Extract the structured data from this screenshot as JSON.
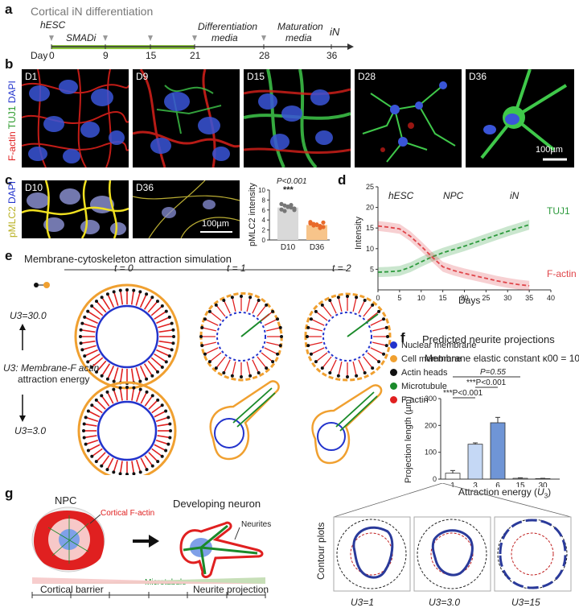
{
  "panel_letters": {
    "a": "a",
    "b": "b",
    "c": "c",
    "d": "d",
    "e": "e",
    "f": "f",
    "g": "g"
  },
  "panel_a": {
    "title": "Cortical iN differentiation",
    "start_label": "hESC",
    "smadi_label": "SMADi",
    "diff_label_1": "Differentiation",
    "diff_label_2": "media",
    "mat_label_1": "Maturation",
    "mat_label_2": "media",
    "end_label": "iN",
    "day_label": "Day",
    "days": [
      "0",
      "9",
      "15",
      "21",
      "28",
      "36"
    ],
    "accent_color": "#8dc63f"
  },
  "panel_b": {
    "ylabel_parts": [
      "F-actin",
      "TUJ1",
      "DAPI"
    ],
    "images": [
      "D1",
      "D9",
      "D15",
      "D28",
      "D36"
    ],
    "scalebar": "100µm"
  },
  "panel_c": {
    "ylabel_parts": [
      "pMLC2",
      "DAPI"
    ],
    "images": [
      "D10",
      "D36"
    ],
    "scalebar": "100µm",
    "bar_chart": {
      "ylabel": "pMLC2 intensity",
      "categories": [
        "D10",
        "D36"
      ],
      "pvalue": "P<0.001",
      "stars": "***"
    }
  },
  "panel_d": {
    "phase_labels": [
      "hESC",
      "NPC",
      "iN"
    ],
    "xlabel": "Days",
    "ylabel": "Intensity",
    "xticks": [
      "0",
      "5",
      "10",
      "15",
      "20",
      "25",
      "30",
      "35",
      "40"
    ],
    "yticks": [
      "5",
      "10",
      "15",
      "20",
      "25"
    ],
    "series_labels": [
      "TUJ1",
      "F-actin"
    ]
  },
  "panel_e": {
    "title": "Membrane-cytoskeleton attraction simulation",
    "times": [
      "t = 0",
      "t = 1",
      "t = 2"
    ],
    "u_high": "U3=30.0",
    "u_low": "U3=3.0",
    "u_desc_1": "U3: Membrane-F actin",
    "u_desc_2": "attraction energy",
    "legend": [
      {
        "label": "Nuclear membrane",
        "color": "#2233cc"
      },
      {
        "label": "Cell membrane",
        "color": "#f0a030"
      },
      {
        "label": "Actin heads",
        "color": "#111111"
      },
      {
        "label": "Microtubule",
        "color": "#1a8a2a"
      },
      {
        "label": "F-actin",
        "color": "#e02020"
      }
    ]
  },
  "panel_f": {
    "title": "Predicted neurite projections",
    "subtitle": "Membrane elastic constant  κ00 = 10",
    "sig_lines": [
      "P=0.55",
      "***P<0.001",
      "***P<0.001"
    ],
    "contour_label": "Contour plots",
    "contour_captions": [
      "U3=1",
      "U3=3.0",
      "U3=15"
    ]
  },
  "panel_g": {
    "npc_label": "NPC",
    "dev_label": "Developing neuron",
    "cortical_label": "Cortical F-actin",
    "neurites_label": "Neurites",
    "microtubule_label": "Microtubule",
    "barrier_label": "Cortical barrier",
    "projection_label": "Neurite projection"
  },
  "chart_data": [
    {
      "type": "bar",
      "categories": [
        "D10",
        "D36"
      ],
      "values": [
        6.5,
        3.0
      ],
      "ylim": [
        0,
        10
      ],
      "yticks": [
        0,
        2,
        4,
        6,
        8,
        10
      ],
      "xlabel": "",
      "ylabel": "pMLC2 intensity",
      "colors": [
        "#d9d9d9",
        "#f7c48a"
      ],
      "points": [
        [
          7.2,
          6.9,
          6.7,
          6.5,
          6.3,
          6.1,
          5.8,
          6.6,
          7.0,
          6.0
        ],
        [
          3.6,
          3.2,
          3.0,
          2.8,
          2.6,
          3.3,
          2.9,
          3.1,
          2.4,
          3.5
        ]
      ]
    },
    {
      "type": "line",
      "x": [
        0,
        2.5,
        5,
        7.5,
        10,
        12.5,
        15,
        17.5,
        20,
        22.5,
        25,
        27.5,
        30,
        32.5,
        35
      ],
      "series": [
        {
          "name": "TUJ1",
          "color": "#2c9a3c",
          "values": [
            4.3,
            4.4,
            4.6,
            5.5,
            6.8,
            8.0,
            9.0,
            9.8,
            10.6,
            11.5,
            12.4,
            13.3,
            14.2,
            15.0,
            15.8
          ]
        },
        {
          "name": "F-actin",
          "color": "#e0454a",
          "values": [
            15.5,
            15.2,
            14.8,
            13.0,
            10.6,
            8.0,
            5.6,
            4.7,
            4.0,
            3.4,
            2.8,
            2.2,
            1.7,
            1.3,
            1.0
          ]
        }
      ],
      "xlabel": "Days",
      "ylabel": "Intensity",
      "xlim": [
        0,
        40
      ],
      "ylim": [
        0,
        25
      ],
      "xticks": [
        0,
        5,
        10,
        15,
        20,
        25,
        30,
        35,
        40
      ],
      "yticks": [
        0,
        5,
        10,
        15,
        20,
        25
      ],
      "grid": false
    },
    {
      "type": "bar",
      "categories": [
        "1",
        "3",
        "6",
        "15",
        "30"
      ],
      "values": [
        22,
        130,
        210,
        3,
        2
      ],
      "errors": [
        10,
        5,
        20,
        2,
        1
      ],
      "ylim": [
        0,
        300
      ],
      "yticks": [
        0,
        100,
        200,
        300
      ],
      "xlabel": "Attraction energy (U3)",
      "ylabel": "Projection length (µm)",
      "colors": [
        "#ffffff",
        "#c5d8f5",
        "#6f95d6",
        "#ffffff",
        "#ffffff"
      ]
    }
  ]
}
